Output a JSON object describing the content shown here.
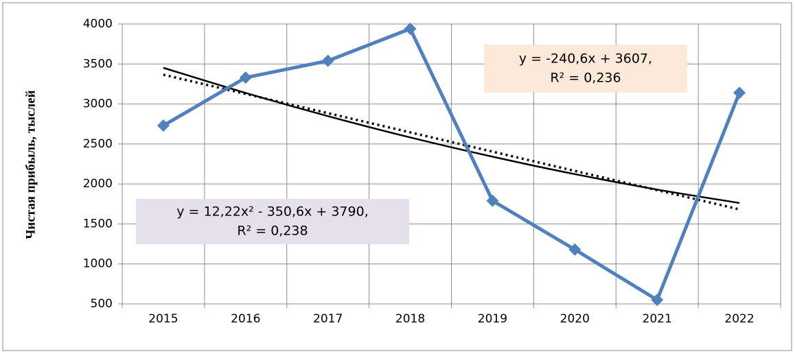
{
  "chart_data": {
    "type": "line",
    "y_label": "Чистая прибыль, тыслей",
    "categories": [
      "2015",
      "2016",
      "2017",
      "2018",
      "2019",
      "2020",
      "2021",
      "2022"
    ],
    "series": [
      {
        "color": "#4f81bd",
        "values": [
          2730,
          3330,
          3540,
          3940,
          1790,
          1180,
          550,
          3140
        ]
      }
    ],
    "trendlines": [
      {
        "style": "dotted",
        "color": "#000000",
        "values": [
          3366,
          3126,
          2885,
          2645,
          2404,
          2163,
          1923,
          1682
        ]
      },
      {
        "style": "solid",
        "color": "#000000",
        "values": [
          3452,
          3138,
          2848,
          2582,
          2341,
          2123,
          1930,
          1762
        ]
      }
    ],
    "annotations": [
      {
        "lines": [
          "y = -240,6x + 3607,",
          "R² = 0,236"
        ],
        "color": "#fde9d9"
      },
      {
        "lines": [
          "y = 12,22x² - 350,6x + 3790,",
          "R² = 0,238"
        ],
        "color": "#e5e0ec"
      }
    ],
    "ylim": [
      500,
      4000
    ],
    "yticks": [
      500,
      1000,
      1500,
      2000,
      2500,
      3000,
      3500,
      4000
    ],
    "grid": true
  }
}
